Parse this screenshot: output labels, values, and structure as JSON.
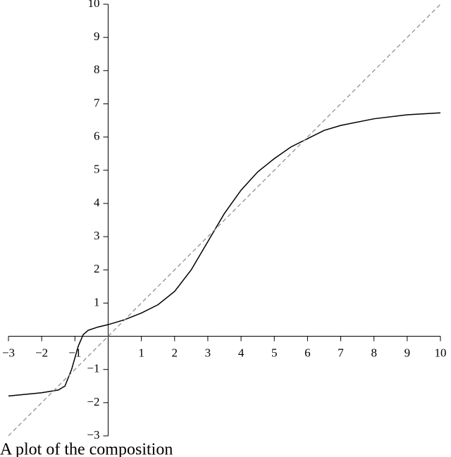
{
  "chart_data": {
    "type": "line",
    "caption": "A plot of the composition",
    "xlim": [
      -3,
      10
    ],
    "ylim": [
      -3,
      10
    ],
    "xticks": [
      {
        "value": -3,
        "label": "−3"
      },
      {
        "value": -2,
        "label": "−2"
      },
      {
        "value": -1,
        "label": "−1"
      },
      1,
      2,
      3,
      4,
      5,
      6,
      7,
      8,
      9,
      10
    ],
    "yticks": [
      {
        "value": -3,
        "label": "−3"
      },
      {
        "value": -2,
        "label": "−2"
      },
      {
        "value": -1,
        "label": "−1"
      },
      1,
      2,
      3,
      4,
      5,
      6,
      7,
      8,
      9,
      10
    ],
    "series": [
      {
        "color": "#000000",
        "dash": false,
        "x": [
          -3,
          -2,
          -1.5,
          -1.3,
          -1.1,
          -0.9,
          -0.75,
          -0.6,
          -0.3,
          0,
          0.5,
          1,
          1.5,
          2,
          2.5,
          3,
          3.5,
          4,
          4.5,
          5,
          5.5,
          6,
          6.5,
          7,
          8,
          9,
          10
        ],
        "values": [
          -1.8,
          -1.7,
          -1.62,
          -1.5,
          -1.0,
          -0.3,
          0.05,
          0.18,
          0.28,
          0.35,
          0.5,
          0.7,
          0.95,
          1.35,
          2.0,
          2.85,
          3.7,
          4.4,
          4.95,
          5.35,
          5.7,
          5.95,
          6.2,
          6.35,
          6.55,
          6.67,
          6.73
        ]
      },
      {
        "color": "#888888",
        "dash": true,
        "x": [
          -3,
          10
        ],
        "values": [
          -3,
          10
        ]
      }
    ]
  }
}
